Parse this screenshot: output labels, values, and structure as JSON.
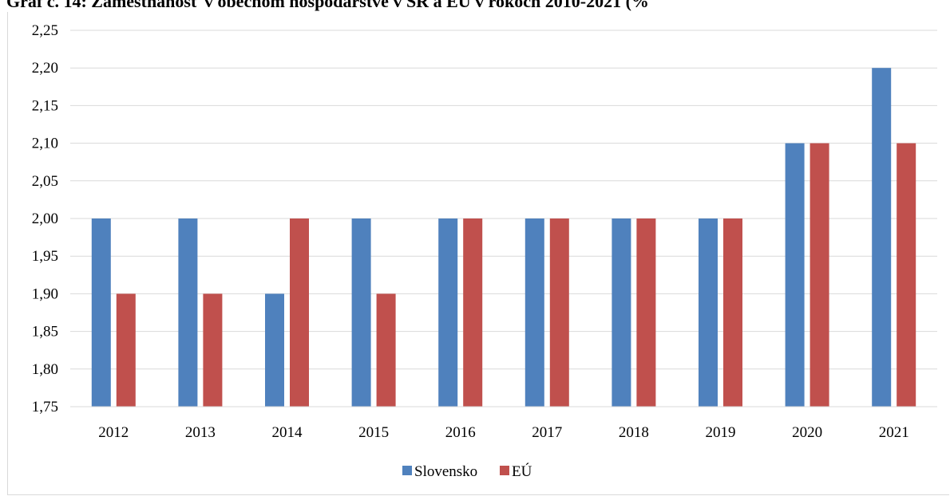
{
  "chart_data": {
    "type": "bar",
    "title": "Graf č. 14: Zamestnanosť v obecnom hospodárstve v SR a EÚ v rokoch 2010-2021 (%",
    "xlabel": "",
    "ylabel": "",
    "ylim": [
      1.75,
      2.25
    ],
    "ytick_step": 0.05,
    "yticks": [
      "1,75",
      "1,80",
      "1,85",
      "1,90",
      "1,95",
      "2,00",
      "2,05",
      "2,10",
      "2,15",
      "2,20",
      "2,25"
    ],
    "grid": true,
    "legend_position": "bottom",
    "categories": [
      "2012",
      "2013",
      "2014",
      "2015",
      "2016",
      "2017",
      "2018",
      "2019",
      "2020",
      "2021"
    ],
    "series": [
      {
        "name": "Slovensko",
        "color": "#4f81bd",
        "values": [
          2.0,
          2.0,
          1.9,
          2.0,
          2.0,
          2.0,
          2.0,
          2.0,
          2.1,
          2.2
        ]
      },
      {
        "name": "EÚ",
        "color": "#c0504d",
        "values": [
          1.9,
          1.9,
          2.0,
          1.9,
          2.0,
          2.0,
          2.0,
          2.0,
          2.1,
          2.1
        ]
      }
    ]
  }
}
